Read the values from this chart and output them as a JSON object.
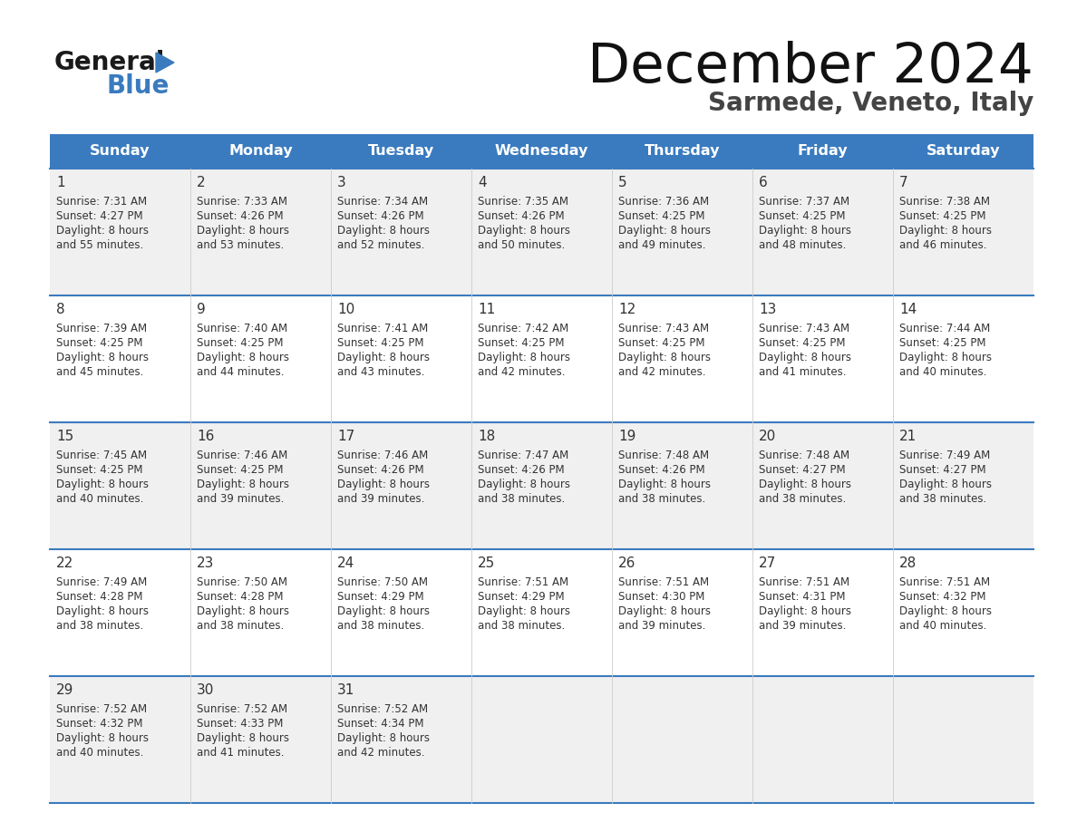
{
  "title": "December 2024",
  "subtitle": "Sarmede, Veneto, Italy",
  "header_color": "#3a7bbf",
  "header_text_color": "#ffffff",
  "days_of_week": [
    "Sunday",
    "Monday",
    "Tuesday",
    "Wednesday",
    "Thursday",
    "Friday",
    "Saturday"
  ],
  "bg_color": "#ffffff",
  "cell_bg_even": "#f0f0f0",
  "cell_bg_odd": "#ffffff",
  "divider_color": "#3a7bbf",
  "text_color": "#333333",
  "calendar": [
    [
      {
        "day": "1",
        "sunrise": "7:31 AM",
        "sunset": "4:27 PM",
        "daylight_h": "8 hours",
        "daylight_m": "and 55 minutes."
      },
      {
        "day": "2",
        "sunrise": "7:33 AM",
        "sunset": "4:26 PM",
        "daylight_h": "8 hours",
        "daylight_m": "and 53 minutes."
      },
      {
        "day": "3",
        "sunrise": "7:34 AM",
        "sunset": "4:26 PM",
        "daylight_h": "8 hours",
        "daylight_m": "and 52 minutes."
      },
      {
        "day": "4",
        "sunrise": "7:35 AM",
        "sunset": "4:26 PM",
        "daylight_h": "8 hours",
        "daylight_m": "and 50 minutes."
      },
      {
        "day": "5",
        "sunrise": "7:36 AM",
        "sunset": "4:25 PM",
        "daylight_h": "8 hours",
        "daylight_m": "and 49 minutes."
      },
      {
        "day": "6",
        "sunrise": "7:37 AM",
        "sunset": "4:25 PM",
        "daylight_h": "8 hours",
        "daylight_m": "and 48 minutes."
      },
      {
        "day": "7",
        "sunrise": "7:38 AM",
        "sunset": "4:25 PM",
        "daylight_h": "8 hours",
        "daylight_m": "and 46 minutes."
      }
    ],
    [
      {
        "day": "8",
        "sunrise": "7:39 AM",
        "sunset": "4:25 PM",
        "daylight_h": "8 hours",
        "daylight_m": "and 45 minutes."
      },
      {
        "day": "9",
        "sunrise": "7:40 AM",
        "sunset": "4:25 PM",
        "daylight_h": "8 hours",
        "daylight_m": "and 44 minutes."
      },
      {
        "day": "10",
        "sunrise": "7:41 AM",
        "sunset": "4:25 PM",
        "daylight_h": "8 hours",
        "daylight_m": "and 43 minutes."
      },
      {
        "day": "11",
        "sunrise": "7:42 AM",
        "sunset": "4:25 PM",
        "daylight_h": "8 hours",
        "daylight_m": "and 42 minutes."
      },
      {
        "day": "12",
        "sunrise": "7:43 AM",
        "sunset": "4:25 PM",
        "daylight_h": "8 hours",
        "daylight_m": "and 42 minutes."
      },
      {
        "day": "13",
        "sunrise": "7:43 AM",
        "sunset": "4:25 PM",
        "daylight_h": "8 hours",
        "daylight_m": "and 41 minutes."
      },
      {
        "day": "14",
        "sunrise": "7:44 AM",
        "sunset": "4:25 PM",
        "daylight_h": "8 hours",
        "daylight_m": "and 40 minutes."
      }
    ],
    [
      {
        "day": "15",
        "sunrise": "7:45 AM",
        "sunset": "4:25 PM",
        "daylight_h": "8 hours",
        "daylight_m": "and 40 minutes."
      },
      {
        "day": "16",
        "sunrise": "7:46 AM",
        "sunset": "4:25 PM",
        "daylight_h": "8 hours",
        "daylight_m": "and 39 minutes."
      },
      {
        "day": "17",
        "sunrise": "7:46 AM",
        "sunset": "4:26 PM",
        "daylight_h": "8 hours",
        "daylight_m": "and 39 minutes."
      },
      {
        "day": "18",
        "sunrise": "7:47 AM",
        "sunset": "4:26 PM",
        "daylight_h": "8 hours",
        "daylight_m": "and 38 minutes."
      },
      {
        "day": "19",
        "sunrise": "7:48 AM",
        "sunset": "4:26 PM",
        "daylight_h": "8 hours",
        "daylight_m": "and 38 minutes."
      },
      {
        "day": "20",
        "sunrise": "7:48 AM",
        "sunset": "4:27 PM",
        "daylight_h": "8 hours",
        "daylight_m": "and 38 minutes."
      },
      {
        "day": "21",
        "sunrise": "7:49 AM",
        "sunset": "4:27 PM",
        "daylight_h": "8 hours",
        "daylight_m": "and 38 minutes."
      }
    ],
    [
      {
        "day": "22",
        "sunrise": "7:49 AM",
        "sunset": "4:28 PM",
        "daylight_h": "8 hours",
        "daylight_m": "and 38 minutes."
      },
      {
        "day": "23",
        "sunrise": "7:50 AM",
        "sunset": "4:28 PM",
        "daylight_h": "8 hours",
        "daylight_m": "and 38 minutes."
      },
      {
        "day": "24",
        "sunrise": "7:50 AM",
        "sunset": "4:29 PM",
        "daylight_h": "8 hours",
        "daylight_m": "and 38 minutes."
      },
      {
        "day": "25",
        "sunrise": "7:51 AM",
        "sunset": "4:29 PM",
        "daylight_h": "8 hours",
        "daylight_m": "and 38 minutes."
      },
      {
        "day": "26",
        "sunrise": "7:51 AM",
        "sunset": "4:30 PM",
        "daylight_h": "8 hours",
        "daylight_m": "and 39 minutes."
      },
      {
        "day": "27",
        "sunrise": "7:51 AM",
        "sunset": "4:31 PM",
        "daylight_h": "8 hours",
        "daylight_m": "and 39 minutes."
      },
      {
        "day": "28",
        "sunrise": "7:51 AM",
        "sunset": "4:32 PM",
        "daylight_h": "8 hours",
        "daylight_m": "and 40 minutes."
      }
    ],
    [
      {
        "day": "29",
        "sunrise": "7:52 AM",
        "sunset": "4:32 PM",
        "daylight_h": "8 hours",
        "daylight_m": "and 40 minutes."
      },
      {
        "day": "30",
        "sunrise": "7:52 AM",
        "sunset": "4:33 PM",
        "daylight_h": "8 hours",
        "daylight_m": "and 41 minutes."
      },
      {
        "day": "31",
        "sunrise": "7:52 AM",
        "sunset": "4:34 PM",
        "daylight_h": "8 hours",
        "daylight_m": "and 42 minutes."
      },
      null,
      null,
      null,
      null
    ]
  ]
}
